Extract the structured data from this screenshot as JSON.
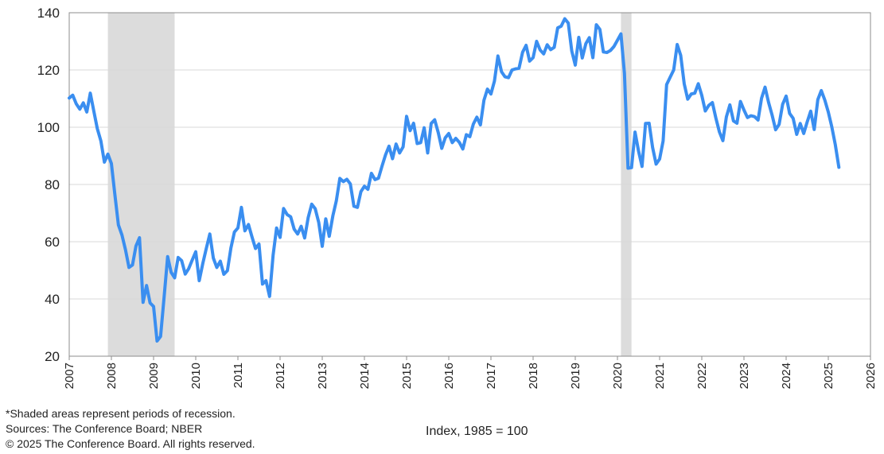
{
  "chart_data": {
    "type": "line",
    "xlabel": "",
    "ylabel": "",
    "unit_label": "Index, 1985 = 100",
    "ylim": [
      20,
      140
    ],
    "yticks": [
      20,
      40,
      60,
      80,
      100,
      120,
      140
    ],
    "xlim": [
      "2007-01",
      "2026-01"
    ],
    "xticks": [
      "2007",
      "2008",
      "2009",
      "2010",
      "2011",
      "2012",
      "2013",
      "2014",
      "2015",
      "2016",
      "2017",
      "2018",
      "2019",
      "2020",
      "2021",
      "2022",
      "2023",
      "2024",
      "2025",
      "2026"
    ],
    "grid": "horizontal",
    "line_color": "#3a8ef0",
    "recession_color": "#dcdcdc",
    "recessions": [
      [
        "2007-12",
        "2009-06"
      ],
      [
        "2020-02",
        "2020-04"
      ]
    ],
    "series": [
      {
        "start": "2007-01",
        "frequency": "monthly",
        "values": [
          110.2,
          111.2,
          108.2,
          106.3,
          108.5,
          105.3,
          111.9,
          105.6,
          99.5,
          95.2,
          87.8,
          90.6,
          87.3,
          76.4,
          65.9,
          62.3,
          57.2,
          51.0,
          51.9,
          58.5,
          61.4,
          38.8,
          44.7,
          38.6,
          37.4,
          25.3,
          26.9,
          40.8,
          54.8,
          49.3,
          47.4,
          54.5,
          53.4,
          48.7,
          50.6,
          53.6,
          56.5,
          46.4,
          52.3,
          57.7,
          62.7,
          54.3,
          51.0,
          53.2,
          48.6,
          49.9,
          57.8,
          63.4,
          64.8,
          72.0,
          63.8,
          66.0,
          61.7,
          57.6,
          59.2,
          45.2,
          46.4,
          40.9,
          55.2,
          64.8,
          61.5,
          71.6,
          69.5,
          68.7,
          64.4,
          62.7,
          65.4,
          61.3,
          68.4,
          73.1,
          71.5,
          66.7,
          58.4,
          68.0,
          61.9,
          69.0,
          74.3,
          82.1,
          81.0,
          81.8,
          80.2,
          72.4,
          72.0,
          77.5,
          79.4,
          78.3,
          83.9,
          81.7,
          82.2,
          86.4,
          90.3,
          93.4,
          89.0,
          94.1,
          91.0,
          93.1,
          103.8,
          98.8,
          101.4,
          94.3,
          94.6,
          99.8,
          91.0,
          101.3,
          102.6,
          98.1,
          92.6,
          96.3,
          97.8,
          94.6,
          96.1,
          94.7,
          92.4,
          97.4,
          96.7,
          101.1,
          103.5,
          100.8,
          109.4,
          113.3,
          111.6,
          116.1,
          124.9,
          119.4,
          117.6,
          117.3,
          120.0,
          120.4,
          120.6,
          126.2,
          128.6,
          123.1,
          124.3,
          130.0,
          127.0,
          125.6,
          128.8,
          127.1,
          127.9,
          134.7,
          135.3,
          137.9,
          136.4,
          126.6,
          121.7,
          131.4,
          124.2,
          129.2,
          131.3,
          124.3,
          135.8,
          134.2,
          126.3,
          126.1,
          126.8,
          128.2,
          130.4,
          132.6,
          118.8,
          85.7,
          85.9,
          98.3,
          91.7,
          86.3,
          101.3,
          101.4,
          92.9,
          87.1,
          88.9,
          95.2,
          114.9,
          117.5,
          120.0,
          128.9,
          125.1,
          115.2,
          109.8,
          111.6,
          111.9,
          115.2,
          111.1,
          105.7,
          107.6,
          108.6,
          103.2,
          98.4,
          95.3,
          103.6,
          107.8,
          102.2,
          101.4,
          109.0,
          106.0,
          103.4,
          104.0,
          103.7,
          102.5,
          110.1,
          114.0,
          108.7,
          104.3,
          99.1,
          101.0,
          108.0,
          110.9,
          104.8,
          103.1,
          97.5,
          101.3,
          97.8,
          101.9,
          105.6,
          99.2,
          109.6,
          112.8,
          109.5,
          105.3,
          100.1,
          93.9,
          86.0
        ]
      }
    ]
  },
  "footnotes": {
    "shaded": "*Shaded areas represent periods of recession.",
    "sources": "Sources: The Conference Board;  NBER",
    "copyright": "© 2025 The Conference Board. All rights reserved."
  }
}
